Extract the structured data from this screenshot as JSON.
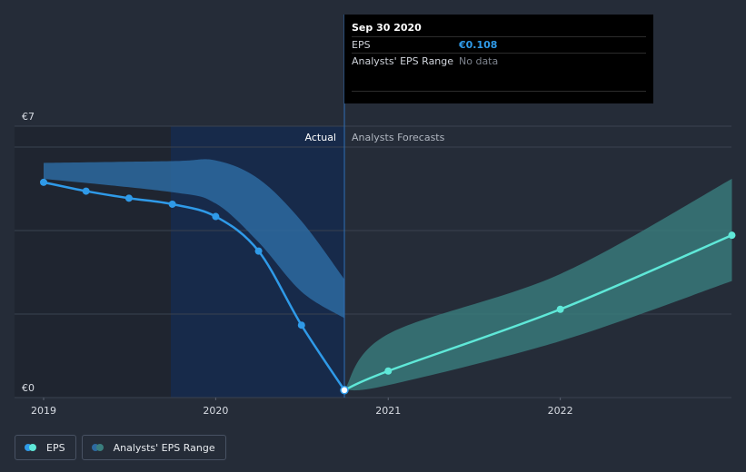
{
  "tooltip": {
    "date": "Sep 30 2020",
    "rows": [
      {
        "label": "EPS",
        "value": "€0.108"
      },
      {
        "label": "Analysts' EPS Range",
        "value": "No data"
      }
    ]
  },
  "legend": [
    {
      "label": "EPS",
      "colors": [
        "#2f9ae8",
        "#5fe8d8"
      ]
    },
    {
      "label": "Analysts' EPS Range",
      "colors": [
        "#2d6aa0",
        "#3a7e7e"
      ]
    }
  ],
  "chart_data": {
    "type": "line",
    "y_tick_labels": [
      "€7",
      "€0"
    ],
    "x_tick_labels": [
      "2019",
      "2020",
      "2021",
      "2022"
    ],
    "ylim": [
      0,
      7
    ],
    "grid": true,
    "region_labels": {
      "actual": "Actual",
      "forecast": "Analysts Forecasts"
    },
    "divider_date": "2020-09-30",
    "series": [
      {
        "name": "EPS",
        "color_actual": "#2f9ae8",
        "color_forecast": "#5fe8d8",
        "points": [
          {
            "date": "2019-01-01",
            "value": 6.0,
            "forecast": false
          },
          {
            "date": "2019-04-01",
            "value": 5.75,
            "forecast": false
          },
          {
            "date": "2019-07-01",
            "value": 5.55,
            "forecast": false
          },
          {
            "date": "2019-10-01",
            "value": 5.38,
            "forecast": false
          },
          {
            "date": "2020-01-01",
            "value": 5.03,
            "forecast": false
          },
          {
            "date": "2020-04-01",
            "value": 4.05,
            "forecast": false
          },
          {
            "date": "2020-07-01",
            "value": 1.95,
            "forecast": false
          },
          {
            "date": "2020-09-30",
            "value": 0.108,
            "forecast": false
          },
          {
            "date": "2021-01-01",
            "value": 0.65,
            "forecast": true
          },
          {
            "date": "2022-01-01",
            "value": 2.4,
            "forecast": true
          },
          {
            "date": "2022-12-31",
            "value": 4.5,
            "forecast": true
          }
        ]
      }
    ],
    "range_actual": {
      "name": "Analysts' EPS Range",
      "color": "#2d6aa0",
      "upper": [
        {
          "date": "2019-01-01",
          "value": 6.55
        },
        {
          "date": "2019-10-01",
          "value": 6.6
        },
        {
          "date": "2020-01-01",
          "value": 6.62
        },
        {
          "date": "2020-04-01",
          "value": 6.1
        },
        {
          "date": "2020-07-01",
          "value": 4.9
        },
        {
          "date": "2020-09-30",
          "value": 3.25
        }
      ],
      "lower": [
        {
          "date": "2019-01-01",
          "value": 6.1
        },
        {
          "date": "2019-10-01",
          "value": 5.72
        },
        {
          "date": "2020-01-01",
          "value": 5.4
        },
        {
          "date": "2020-04-01",
          "value": 4.3
        },
        {
          "date": "2020-07-01",
          "value": 2.9
        },
        {
          "date": "2020-09-30",
          "value": 2.15
        }
      ]
    },
    "range_forecast": {
      "name": "Analysts' EPS Range",
      "color": "#3a7e7e",
      "upper": [
        {
          "date": "2020-09-30",
          "value": 0.108
        },
        {
          "date": "2021-01-01",
          "value": 1.7
        },
        {
          "date": "2022-01-01",
          "value": 3.4
        },
        {
          "date": "2022-12-31",
          "value": 6.1
        }
      ],
      "lower": [
        {
          "date": "2020-09-30",
          "value": 0.108
        },
        {
          "date": "2021-01-01",
          "value": 0.25
        },
        {
          "date": "2022-01-01",
          "value": 1.5
        },
        {
          "date": "2022-12-31",
          "value": 3.2
        }
      ]
    }
  }
}
